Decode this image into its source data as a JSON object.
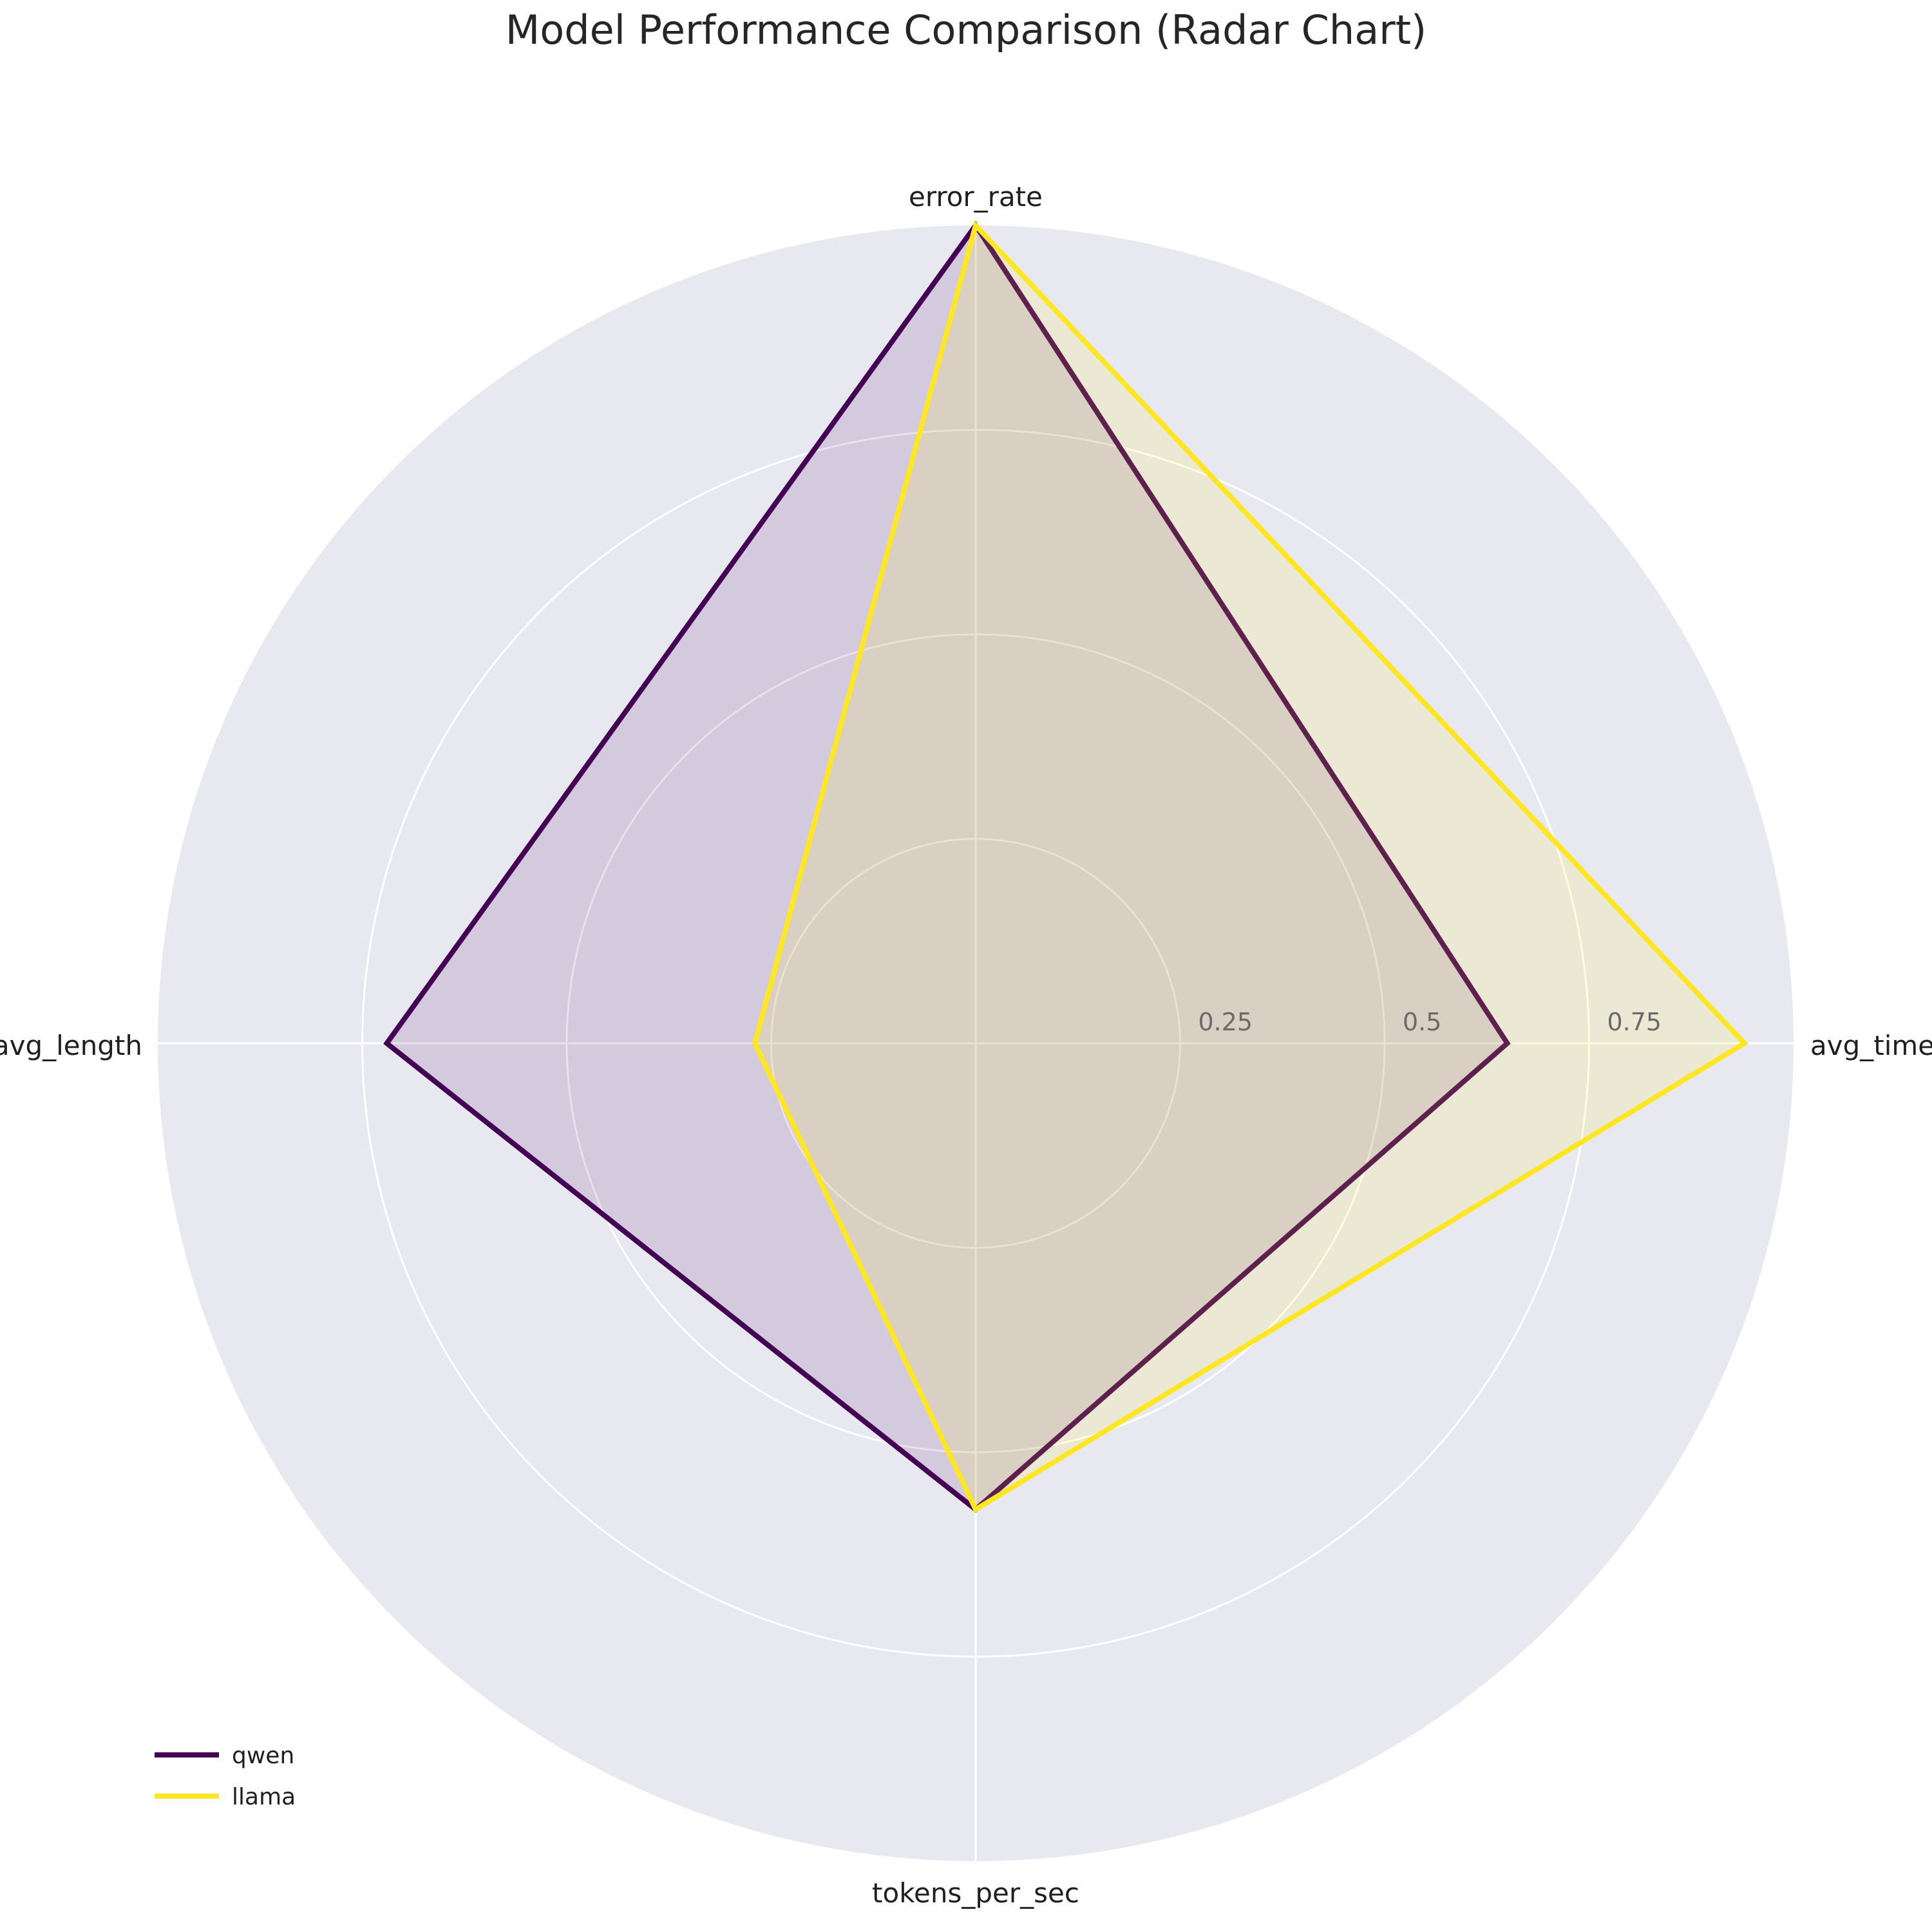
{
  "chart_data": {
    "type": "radar",
    "title": "Model Performance Comparison (Radar Chart)",
    "axes": [
      "avg_time",
      "error_rate",
      "avg_length",
      "tokens_per_sec"
    ],
    "radial_range": [
      0,
      1
    ],
    "radial_ticks": [
      0.25,
      0.5,
      0.75
    ],
    "radial_tick_labels": [
      "0.25",
      "0.5",
      "0.75"
    ],
    "grid": true,
    "legend_position": "lower-left",
    "series": [
      {
        "name": "qwen",
        "color": "#440154",
        "values": [
          0.65,
          1.0,
          0.72,
          0.57
        ]
      },
      {
        "name": "llama",
        "color": "#fde725",
        "values": [
          0.94,
          1.0,
          0.27,
          0.57
        ]
      }
    ]
  }
}
